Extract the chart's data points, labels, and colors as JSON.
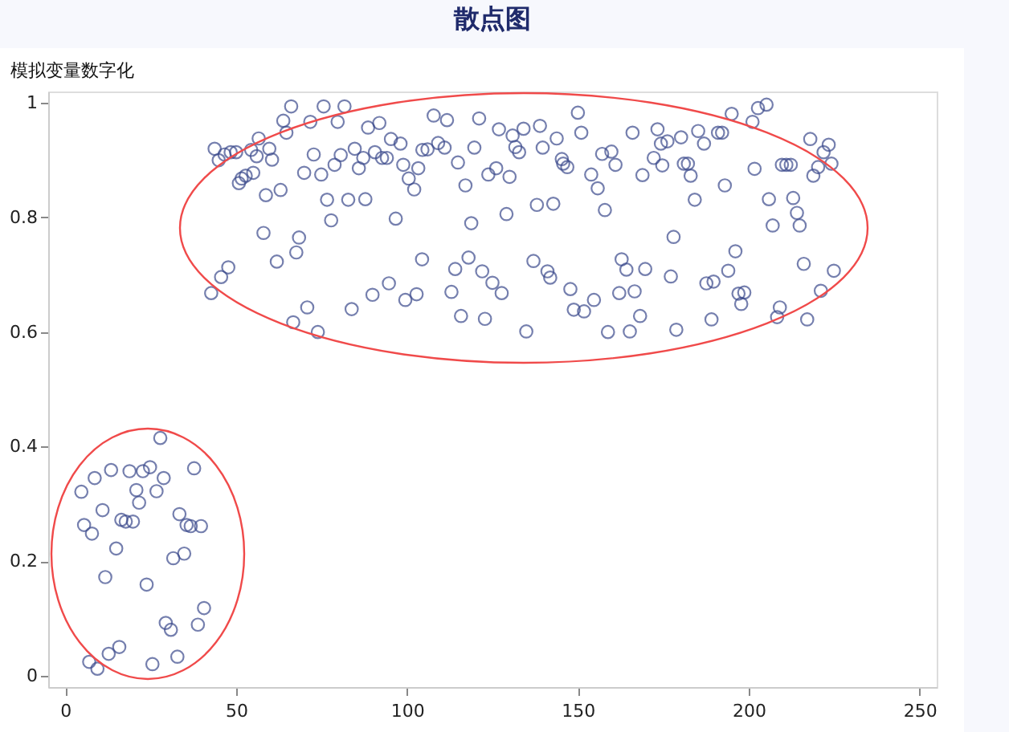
{
  "chart_data": {
    "type": "scatter",
    "title": "散点图",
    "ylabel": "模拟变量数字化",
    "marker": "circle",
    "xlim": [
      -5,
      255
    ],
    "ylim": [
      -0.02,
      1.02
    ],
    "xticks": [
      0,
      50,
      100,
      150,
      200,
      250
    ],
    "yticks": [
      0,
      0.2,
      0.4,
      0.6,
      0.8,
      1
    ],
    "x": [
      27.8,
      4.7,
      8.6,
      13.4,
      18.8,
      22.7,
      24.8,
      28.8,
      37.7,
      20.8,
      26.7,
      21.6,
      10.9,
      5.5,
      7.8,
      16.4,
      17.7,
      19.8,
      33.4,
      35.5,
      36.7,
      39.7,
      14.9,
      34.8,
      31.6,
      11.7,
      23.8,
      40.6,
      29.4,
      30.9,
      38.8,
      15.8,
      12.7,
      7.0,
      9.4,
      25.5,
      32.8,
      66.1,
      75.6,
      81.7,
      63.8,
      71.7,
      79.7,
      64.7,
      88.6,
      91.9,
      95.3,
      98.1,
      43.7,
      48.4,
      50.0,
      56.6,
      59.7,
      44.9,
      46.6,
      54.4,
      56.0,
      60.5,
      72.7,
      84.7,
      80.6,
      87.2,
      90.6,
      92.7,
      94.1,
      104.5,
      78.8,
      85.9,
      98.9,
      103.3,
      69.9,
      74.9,
      100.5,
      102.1,
      51.6,
      50.8,
      52.8,
      55.0,
      58.7,
      63.0,
      76.6,
      82.8,
      87.8,
      96.7,
      77.8,
      58.0,
      68.4,
      61.9,
      67.6,
      104.4,
      47.7,
      45.6,
      42.7,
      94.7,
      89.9,
      102.8,
      99.5,
      70.8,
      83.8,
      66.7,
      73.9,
      107.8,
      111.7,
      121.1,
      150.0,
      126.9,
      130.9,
      134.1,
      138.9,
      151.0,
      166.0,
      143.8,
      106.0,
      109.1,
      111.0,
      119.7,
      131.7,
      132.8,
      139.7,
      157.1,
      159.8,
      114.9,
      145.3,
      145.7,
      146.9,
      161.0,
      123.8,
      126.1,
      130.0,
      153.9,
      168.9,
      117.1,
      155.8,
      138.0,
      142.8,
      157.9,
      129.1,
      118.8,
      118.0,
      114.1,
      122.0,
      137.0,
      141.1,
      141.9,
      125.0,
      127.7,
      113.0,
      147.8,
      162.8,
      164.2,
      169.7,
      162.1,
      166.6,
      154.7,
      148.8,
      151.8,
      115.8,
      122.8,
      134.9,
      158.8,
      165.2,
      168.2,
      195.0,
      202.7,
      205.2,
      201.1,
      173.3,
      185.2,
      191.0,
      192.2,
      180.2,
      218.0,
      223.4,
      174.3,
      176.2,
      186.9,
      221.9,
      172.2,
      174.7,
      181.0,
      182.2,
      209.7,
      211.0,
      212.3,
      224.2,
      220.3,
      201.7,
      183.0,
      218.9,
      193.0,
      184.2,
      205.9,
      213.0,
      214.1,
      207.0,
      214.9,
      178.0,
      196.1,
      216.1,
      224.9,
      177.2,
      194.0,
      187.6,
      189.7,
      197.0,
      198.7,
      197.8,
      221.1,
      209.1,
      208.3,
      217.1,
      189.1,
      178.8
    ],
    "series": [
      {
        "color": "#3b4a8c",
        "values": [
          0.415,
          0.321,
          0.345,
          0.359,
          0.357,
          0.357,
          0.364,
          0.345,
          0.362,
          0.324,
          0.322,
          0.302,
          0.289,
          0.263,
          0.248,
          0.272,
          0.269,
          0.269,
          0.282,
          0.263,
          0.261,
          0.261,
          0.222,
          0.213,
          0.205,
          0.172,
          0.159,
          0.118,
          0.092,
          0.08,
          0.089,
          0.05,
          0.038,
          0.024,
          0.012,
          0.02,
          0.033,
          0.994,
          0.994,
          0.994,
          0.969,
          0.967,
          0.967,
          0.948,
          0.957,
          0.965,
          0.937,
          0.929,
          0.92,
          0.914,
          0.914,
          0.938,
          0.92,
          0.9,
          0.91,
          0.918,
          0.907,
          0.901,
          0.91,
          0.92,
          0.909,
          0.904,
          0.914,
          0.904,
          0.904,
          0.918,
          0.892,
          0.886,
          0.892,
          0.886,
          0.878,
          0.875,
          0.868,
          0.849,
          0.868,
          0.86,
          0.873,
          0.878,
          0.839,
          0.848,
          0.831,
          0.831,
          0.832,
          0.798,
          0.795,
          0.773,
          0.765,
          0.723,
          0.739,
          0.727,
          0.713,
          0.696,
          0.668,
          0.685,
          0.665,
          0.666,
          0.656,
          0.643,
          0.64,
          0.617,
          0.6,
          0.978,
          0.97,
          0.973,
          0.983,
          0.954,
          0.943,
          0.955,
          0.96,
          0.948,
          0.948,
          0.938,
          0.919,
          0.93,
          0.922,
          0.922,
          0.923,
          0.914,
          0.922,
          0.911,
          0.915,
          0.896,
          0.902,
          0.894,
          0.888,
          0.892,
          0.875,
          0.886,
          0.871,
          0.875,
          0.874,
          0.856,
          0.851,
          0.822,
          0.824,
          0.813,
          0.806,
          0.79,
          0.73,
          0.71,
          0.706,
          0.724,
          0.706,
          0.695,
          0.686,
          0.668,
          0.67,
          0.675,
          0.727,
          0.709,
          0.71,
          0.668,
          0.671,
          0.656,
          0.639,
          0.636,
          0.628,
          0.623,
          0.601,
          0.6,
          0.601,
          0.628,
          0.981,
          0.991,
          0.997,
          0.967,
          0.954,
          0.951,
          0.948,
          0.948,
          0.94,
          0.937,
          0.927,
          0.929,
          0.933,
          0.929,
          0.914,
          0.904,
          0.891,
          0.894,
          0.894,
          0.892,
          0.892,
          0.892,
          0.894,
          0.888,
          0.885,
          0.873,
          0.873,
          0.856,
          0.831,
          0.832,
          0.834,
          0.808,
          0.786,
          0.786,
          0.766,
          0.741,
          0.719,
          0.707,
          0.697,
          0.707,
          0.685,
          0.688,
          0.667,
          0.669,
          0.649,
          0.672,
          0.643,
          0.626,
          0.622,
          0.622,
          0.604
        ]
      }
    ]
  }
}
